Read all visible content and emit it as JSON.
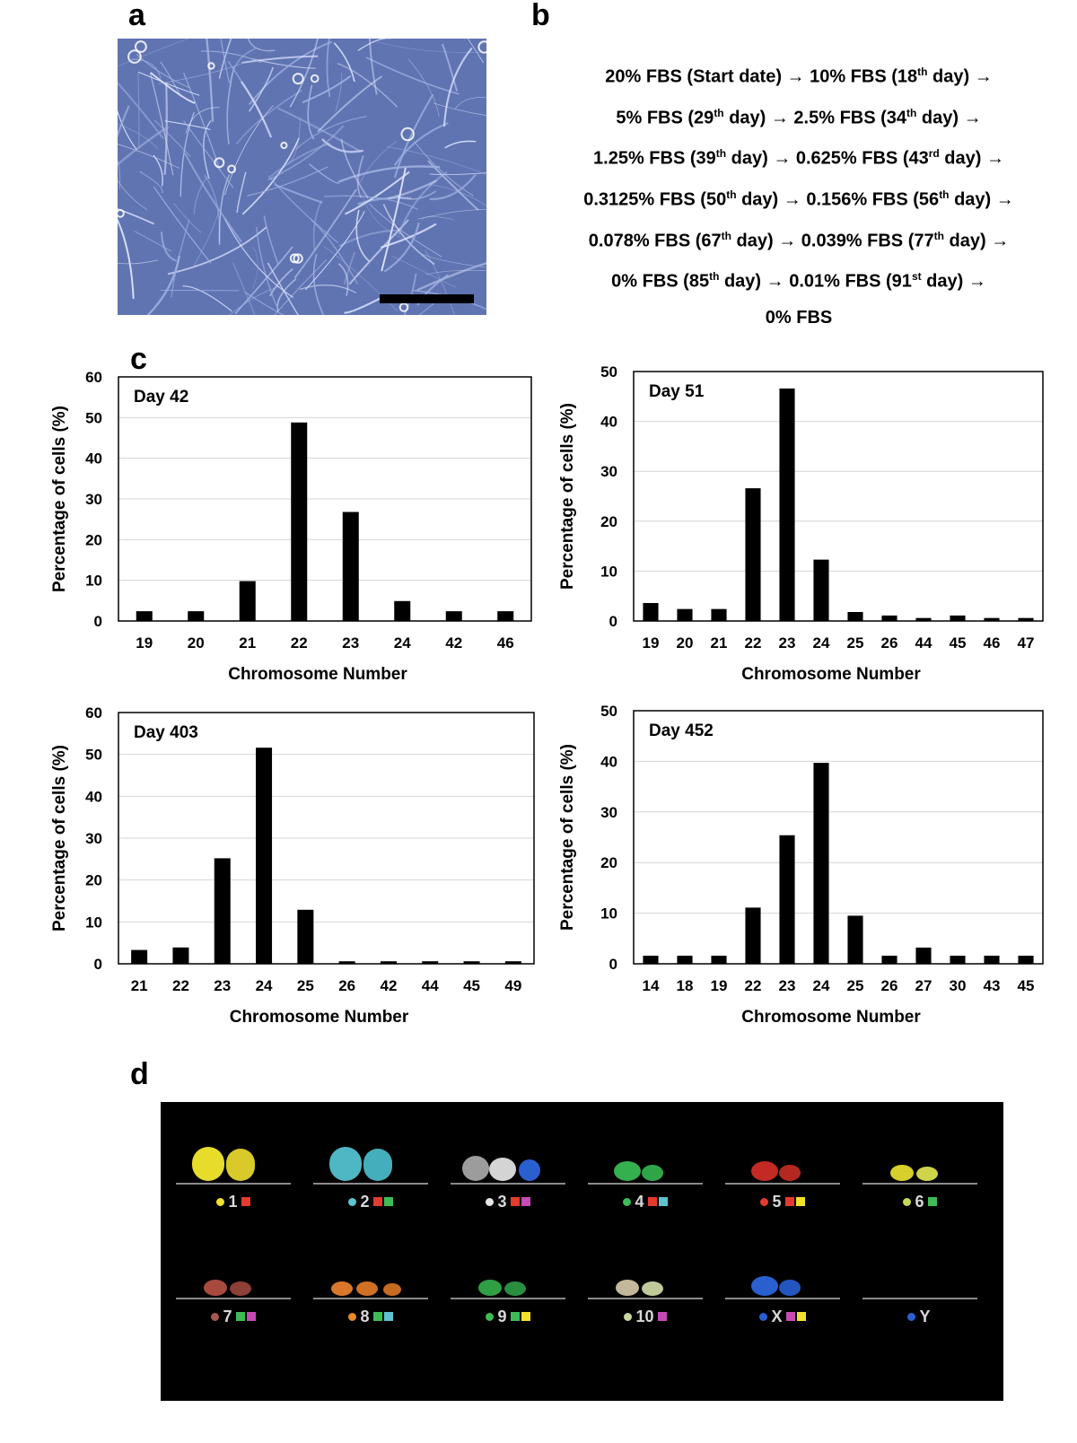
{
  "panels": {
    "a": "a",
    "b": "b",
    "c": "c",
    "d": "d"
  },
  "micrograph": {
    "icon": "phase-contrast-micrograph",
    "scale_bar": "scale-bar"
  },
  "protocol": {
    "lines": [
      [
        [
          "20% FBS (Start date) → 10% FBS (18",
          ""
        ],
        [
          "th",
          "sup"
        ],
        [
          " day) →",
          ""
        ]
      ],
      [
        [
          "5% FBS (29",
          ""
        ],
        [
          "th",
          "sup"
        ],
        [
          " day) → 2.5% FBS (34",
          ""
        ],
        [
          "th",
          "sup"
        ],
        [
          " day) →",
          ""
        ]
      ],
      [
        [
          "1.25% FBS (39",
          ""
        ],
        [
          "th",
          "sup"
        ],
        [
          " day) → 0.625% FBS (43",
          ""
        ],
        [
          "rd",
          "sup"
        ],
        [
          " day) →",
          ""
        ]
      ],
      [
        [
          "0.3125% FBS (50",
          ""
        ],
        [
          "th",
          "sup"
        ],
        [
          " day) → 0.156% FBS (56",
          ""
        ],
        [
          "th",
          "sup"
        ],
        [
          " day) →",
          ""
        ]
      ],
      [
        [
          "0.078% FBS (67",
          ""
        ],
        [
          "th",
          "sup"
        ],
        [
          " day) → 0.039% FBS (77",
          ""
        ],
        [
          "th",
          "sup"
        ],
        [
          " day) →",
          ""
        ]
      ],
      [
        [
          "0% FBS (85",
          ""
        ],
        [
          "th",
          "sup"
        ],
        [
          " day) → 0.01% FBS (91",
          ""
        ],
        [
          "st",
          "sup"
        ],
        [
          " day) →",
          ""
        ]
      ],
      [
        [
          "0% FBS",
          ""
        ]
      ]
    ]
  },
  "chart_data": [
    {
      "type": "bar",
      "title": "Day 42",
      "xlabel": "Chromosome Number",
      "ylabel": "Percentage of cells (%)",
      "categories": [
        "19",
        "20",
        "21",
        "22",
        "23",
        "24",
        "42",
        "46"
      ],
      "values": [
        2.4,
        2.4,
        9.8,
        48.8,
        26.8,
        4.9,
        2.4,
        2.4
      ],
      "ylim": [
        0,
        60
      ],
      "yticks": [
        0,
        10,
        20,
        30,
        40,
        50,
        60
      ],
      "grid": true
    },
    {
      "type": "bar",
      "title": "Day 51",
      "xlabel": "Chromosome Number",
      "ylabel": "Percentage of cells (%)",
      "categories": [
        "19",
        "20",
        "21",
        "22",
        "23",
        "24",
        "25",
        "26",
        "44",
        "45",
        "46",
        "47"
      ],
      "values": [
        3.6,
        2.4,
        2.4,
        26.6,
        46.6,
        12.3,
        1.8,
        1.1,
        0.6,
        1.1,
        0.6,
        0.6
      ],
      "ylim": [
        0,
        50
      ],
      "yticks": [
        0,
        10,
        20,
        30,
        40,
        50
      ],
      "grid": true
    },
    {
      "type": "bar",
      "title": "Day 403",
      "xlabel": "Chromosome Number",
      "ylabel": "Percentage of cells (%)",
      "categories": [
        "21",
        "22",
        "23",
        "24",
        "25",
        "26",
        "42",
        "44",
        "45",
        "49"
      ],
      "values": [
        3.3,
        3.9,
        25.2,
        51.6,
        12.9,
        0.6,
        0.6,
        0.6,
        0.6,
        0.6
      ],
      "ylim": [
        0,
        60
      ],
      "yticks": [
        0,
        10,
        20,
        30,
        40,
        50,
        60
      ],
      "grid": true
    },
    {
      "type": "bar",
      "title": "Day 452",
      "xlabel": "Chromosome Number",
      "ylabel": "Percentage of cells (%)",
      "categories": [
        "14",
        "18",
        "19",
        "22",
        "23",
        "24",
        "25",
        "26",
        "27",
        "30",
        "43",
        "45"
      ],
      "values": [
        1.6,
        1.6,
        1.6,
        11.1,
        25.4,
        39.7,
        9.5,
        1.6,
        3.2,
        1.6,
        1.6,
        1.6
      ],
      "ylim": [
        0,
        50
      ],
      "yticks": [
        0,
        10,
        20,
        30,
        40,
        50
      ],
      "grid": true
    }
  ],
  "karyotype": {
    "pairs": [
      {
        "label": "1",
        "dot": "#f2e12a",
        "squares": [
          "#e53a2e"
        ],
        "chrom_colors": [
          "#e7dc2a",
          "#d9c92a"
        ],
        "shape": "large"
      },
      {
        "label": "2",
        "dot": "#5fc3cf",
        "squares": [
          "#e53a2e",
          "#3dbb56"
        ],
        "chrom_colors": [
          "#4fb6c4",
          "#45aebc"
        ],
        "shape": "large"
      },
      {
        "label": "3",
        "dot": "#e6e6e6",
        "squares": [
          "#e53a2e",
          "#c54ab4"
        ],
        "chrom_colors": [
          "#9c9c9c",
          "#d4d4d4",
          "#2a5fcf"
        ],
        "shape": "medium3"
      },
      {
        "label": "4",
        "dot": "#3dbb56",
        "squares": [
          "#e53a2e",
          "#5fc3cf"
        ],
        "chrom_colors": [
          "#34b04e",
          "#2fa548"
        ],
        "shape": "medium"
      },
      {
        "label": "5",
        "dot": "#e53a2e",
        "squares": [
          "#e53a2e",
          "#f2e12a"
        ],
        "chrom_colors": [
          "#c22a23",
          "#b52822"
        ],
        "shape": "medium"
      },
      {
        "label": "6",
        "dot": "#c8d95a",
        "squares": [
          "#3dbb56"
        ],
        "chrom_colors": [
          "#d6cf2c",
          "#cfd34a"
        ],
        "shape": "small"
      },
      {
        "label": "7",
        "dot": "#a8584f",
        "squares": [
          "#3dbb56",
          "#c54ab4"
        ],
        "chrom_colors": [
          "#a84b3f",
          "#8e3f36"
        ],
        "shape": "small"
      },
      {
        "label": "8",
        "dot": "#e58a2a",
        "squares": [
          "#3dbb56",
          "#5fc3cf"
        ],
        "chrom_colors": [
          "#d9782a",
          "#cf7024",
          "#c96a22"
        ],
        "shape": "small3"
      },
      {
        "label": "9",
        "dot": "#3dbb56",
        "squares": [
          "#3dbb56",
          "#f2e12a"
        ],
        "chrom_colors": [
          "#2f9e45",
          "#2a8e3e"
        ],
        "shape": "small"
      },
      {
        "label": "10",
        "dot": "#c8d9a0",
        "squares": [
          "#c54ab4"
        ],
        "chrom_colors": [
          "#c4b89a",
          "#bfc99a"
        ],
        "shape": "small"
      },
      {
        "label": "X",
        "dot": "#2a5fcf",
        "squares": [
          "#c54ab4",
          "#f2e12a"
        ],
        "chrom_colors": [
          "#2a5fcf",
          "#2456c0"
        ],
        "shape": "medium"
      },
      {
        "label": "Y",
        "dot": "#2a5fcf",
        "squares": [],
        "chrom_colors": [],
        "shape": "none"
      }
    ]
  }
}
